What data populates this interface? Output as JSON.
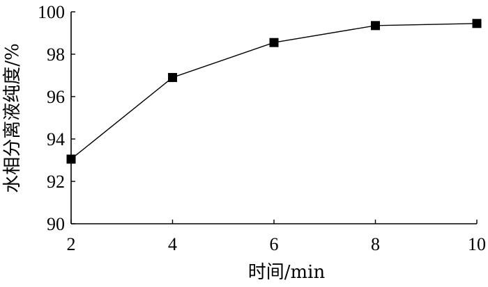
{
  "chart_data": {
    "type": "line",
    "title": "",
    "xlabel": "时间/min",
    "ylabel": "水相分离液纯度/%",
    "x": [
      2,
      4,
      6,
      8,
      10
    ],
    "series": [
      {
        "name": "",
        "values": [
          93.05,
          96.9,
          98.55,
          99.35,
          99.45
        ]
      }
    ],
    "xticks": [
      2,
      4,
      6,
      8,
      10
    ],
    "yticks": [
      90,
      92,
      94,
      96,
      98,
      100
    ],
    "xlim": [
      2,
      10
    ],
    "ylim": [
      90,
      100
    ],
    "grid": false,
    "marker": "square",
    "line_color": "#000000",
    "marker_color": "#000000"
  }
}
